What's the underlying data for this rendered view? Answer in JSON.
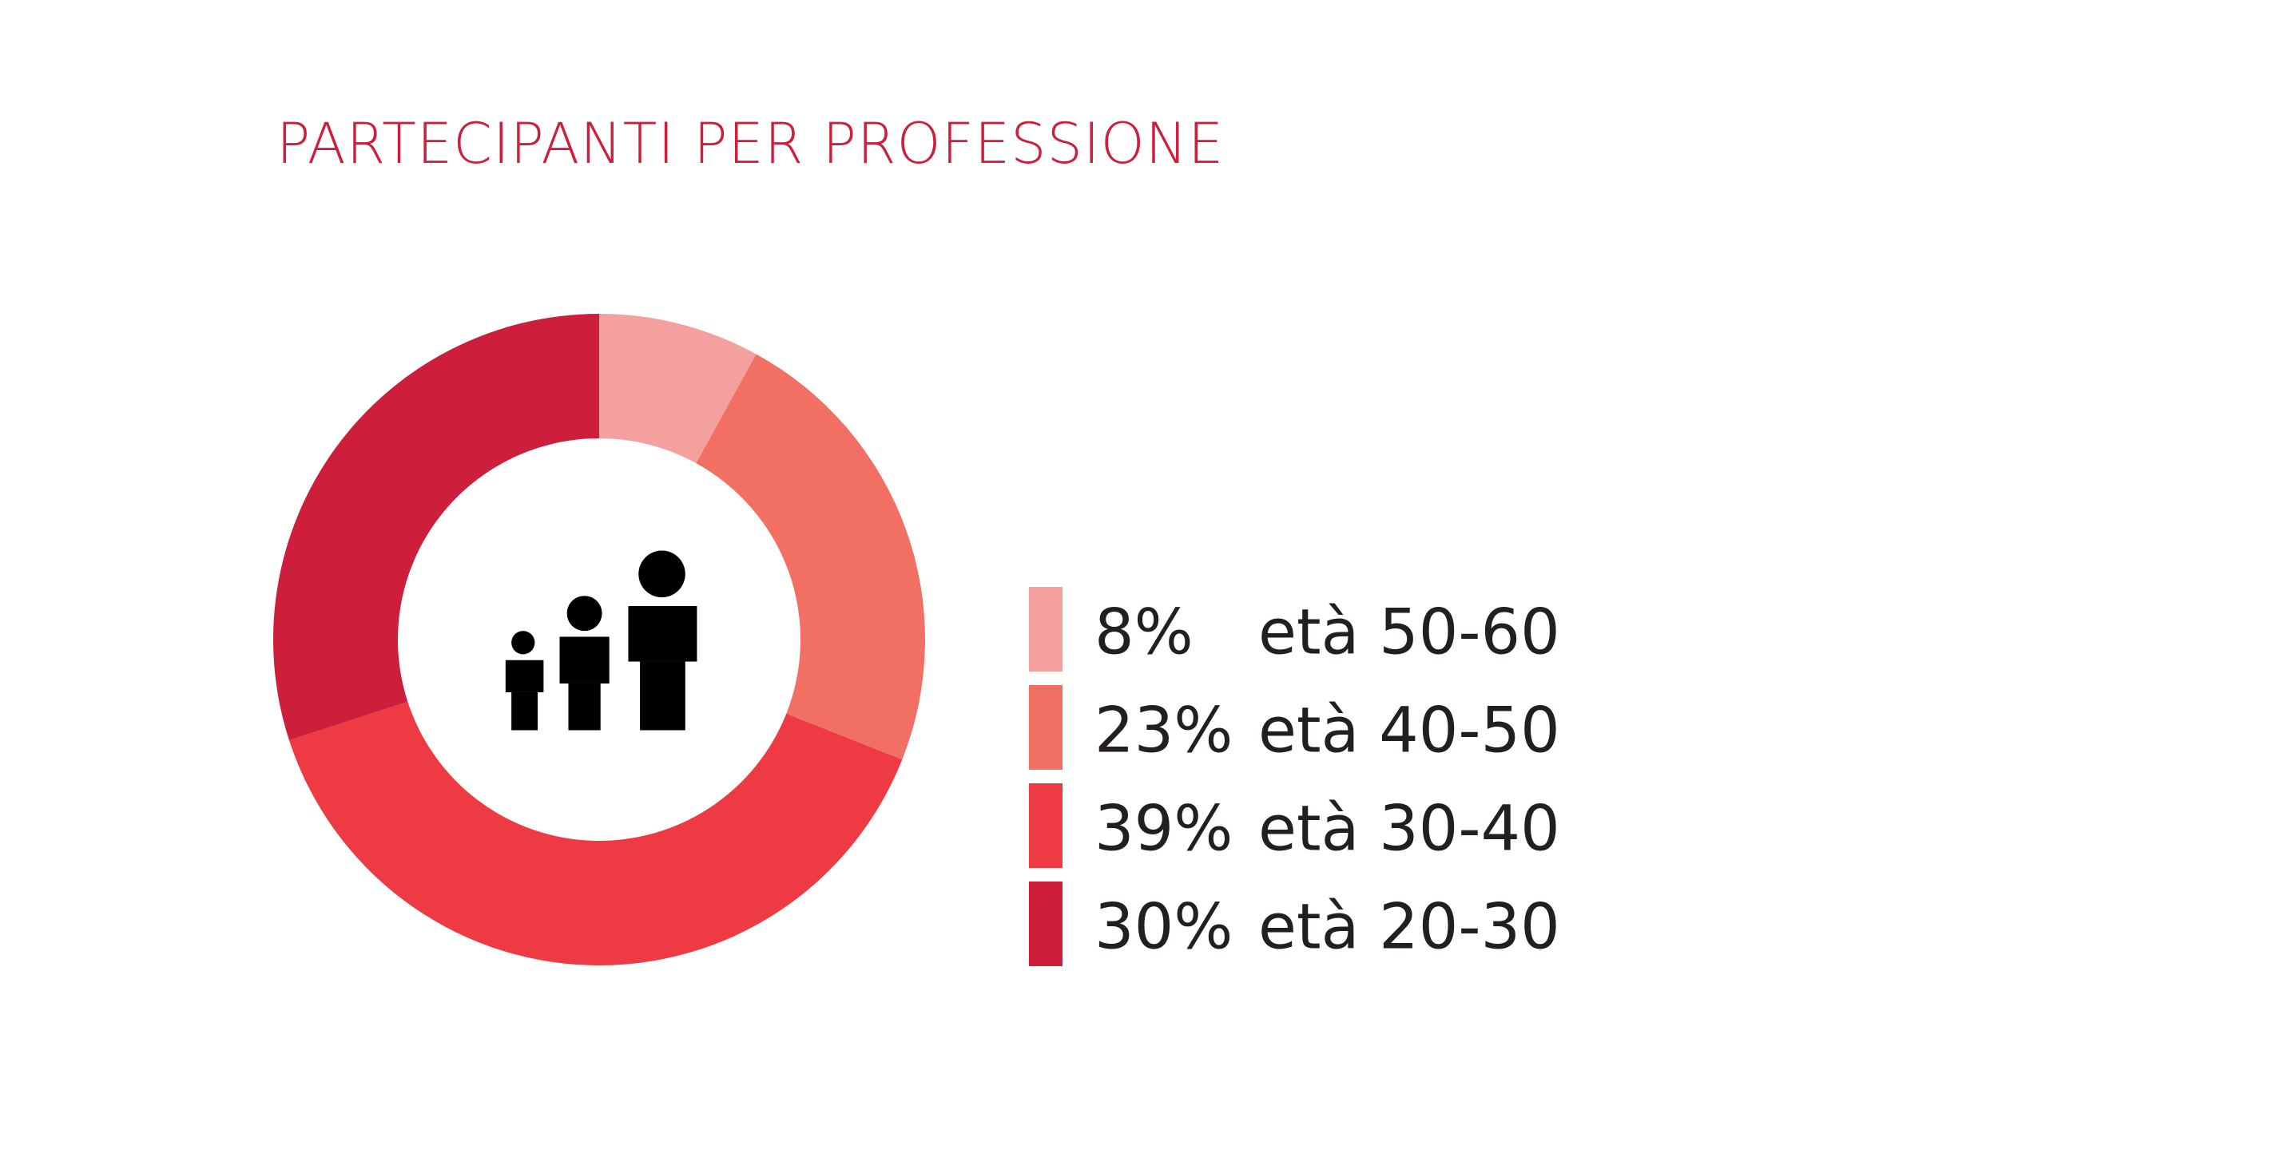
{
  "chart_data": {
    "type": "donut",
    "title": "PARTECIPANTI PER PROFESSIONE",
    "categories": [
      "età 50-60",
      "età 40-50",
      "età 30-40",
      "età 20-30"
    ],
    "values": [
      8,
      23,
      39,
      30
    ],
    "value_labels": [
      "8%",
      "23%",
      "39%",
      "30%"
    ],
    "colors": [
      "#f4a09e",
      "#f26f63",
      "#ee3a43",
      "#cd1f3c"
    ]
  }
}
